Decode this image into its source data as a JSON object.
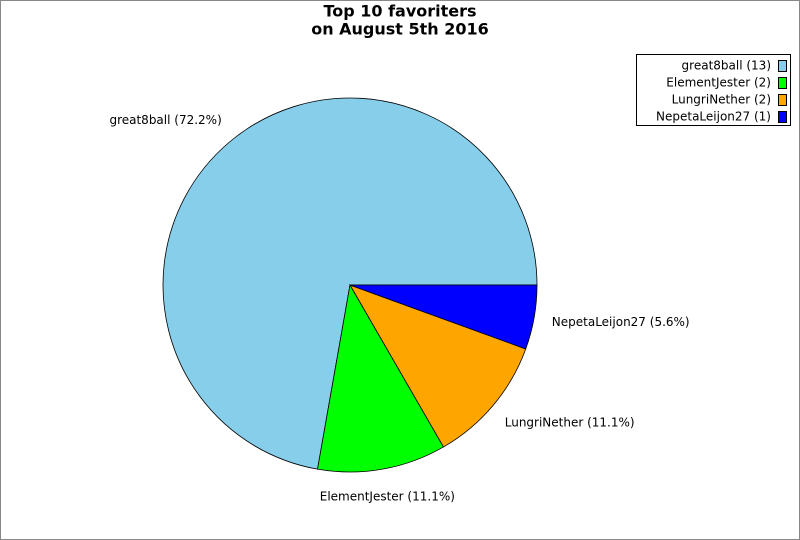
{
  "chart_data": {
    "type": "pie",
    "title": "Top 10 favoriters",
    "subtitle": "on August 5th 2016",
    "categories": [
      "great8ball (13)",
      "ElementJester (2)",
      "LungriNether (2)",
      "NepetaLeijon27 (1)"
    ],
    "values": [
      13,
      2,
      2,
      1
    ],
    "labels": [
      "great8ball (72.2%)",
      "ElementJester (11.1%)",
      "LungriNether (11.1%)",
      "NepetaLeijon27 (5.6%)"
    ],
    "colors": [
      "#87ceeb",
      "#00ff00",
      "#ffa500",
      "#0000ff"
    ],
    "legend": "top-right"
  }
}
